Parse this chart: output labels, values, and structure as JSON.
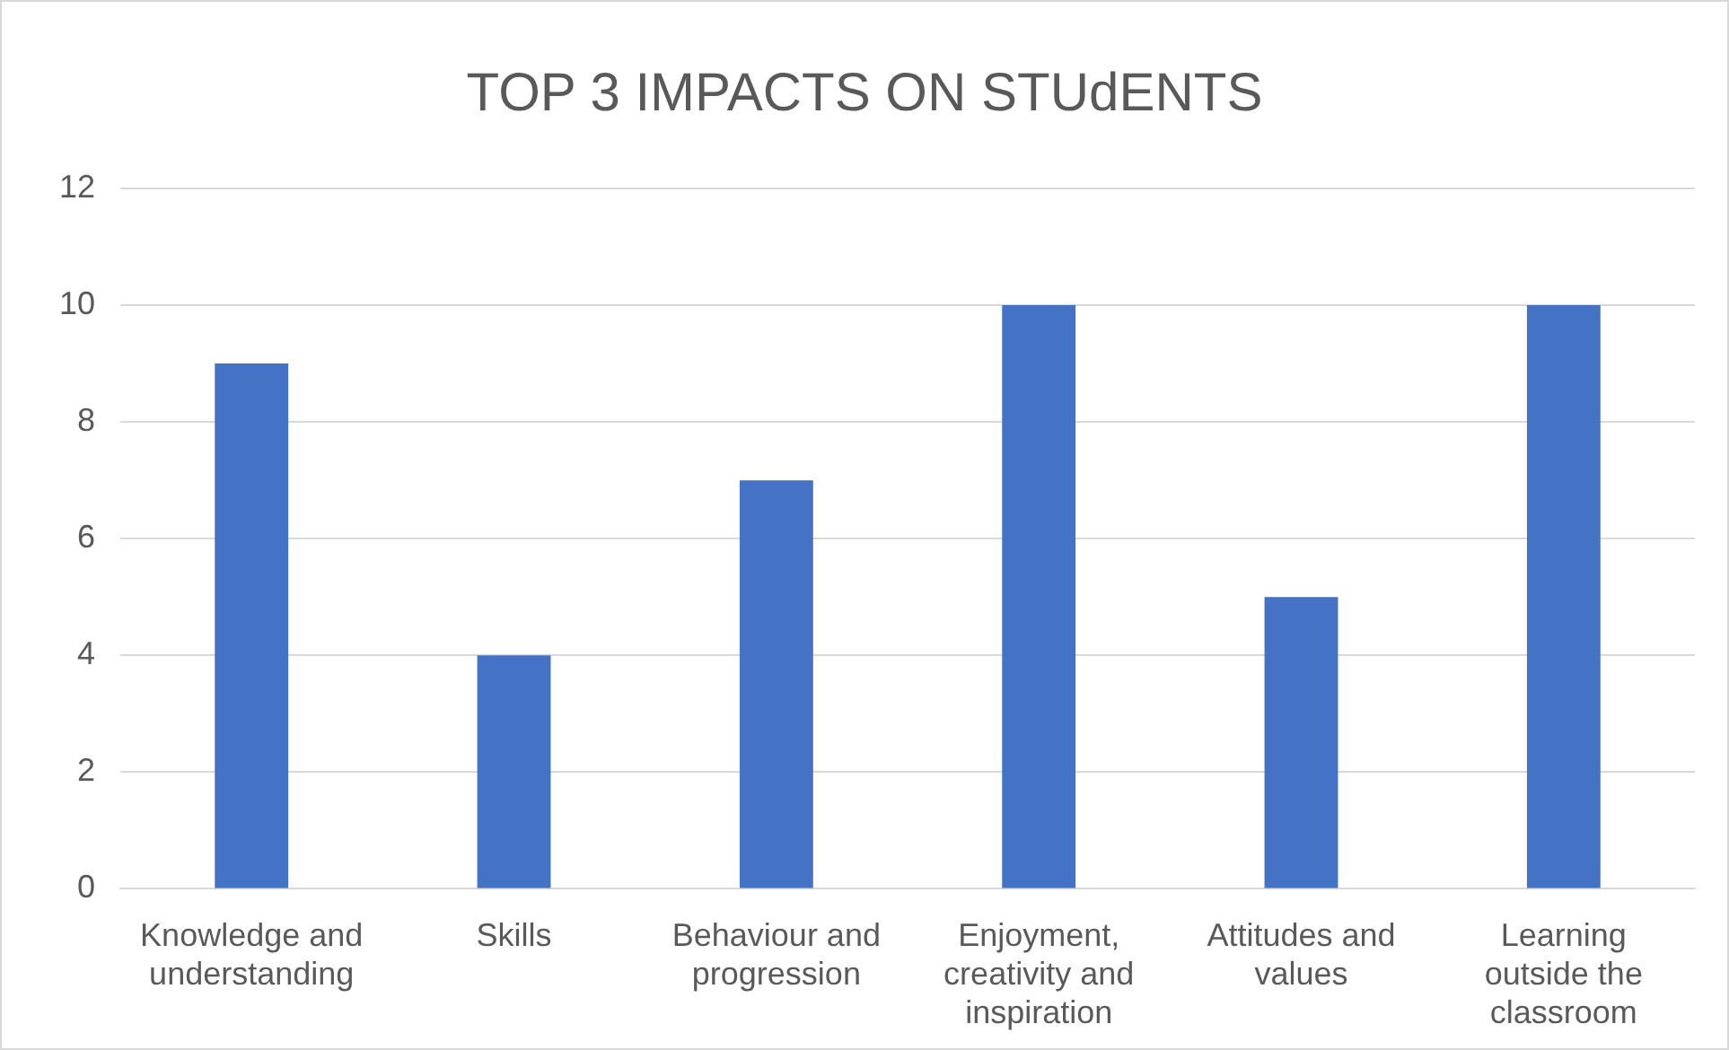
{
  "chart_data": {
    "type": "bar",
    "title": "TOP 3 IMPACTS ON STUdENTS",
    "categories": [
      "Knowledge and understanding",
      "Skills",
      "Behaviour and progression",
      "Enjoyment, creativity and inspiration",
      "Attitudes and values",
      "Learning outside the classroom"
    ],
    "values": [
      9,
      4,
      7,
      10,
      5,
      10
    ],
    "color": "#4472c4",
    "ylim": [
      0,
      12
    ],
    "yticks": [
      0,
      2,
      4,
      6,
      8,
      10,
      12
    ],
    "grid": "y",
    "legend": false
  }
}
